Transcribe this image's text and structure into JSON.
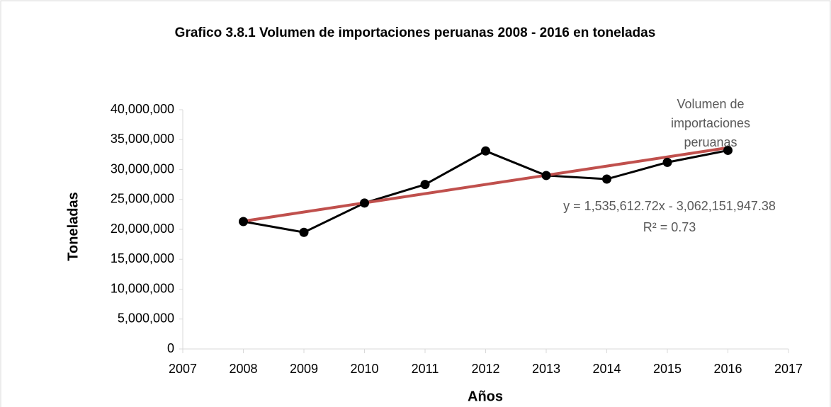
{
  "chart_data": {
    "type": "line",
    "title": "Grafico 3.8.1 Volumen de importaciones peruanas 2008 - 2016 en toneladas",
    "xlabel": "Años",
    "ylabel": "Toneladas",
    "x": [
      2008,
      2009,
      2010,
      2011,
      2012,
      2013,
      2014,
      2015,
      2016
    ],
    "series": [
      {
        "name": "Volumen de importaciones peruanas",
        "color": "#000000",
        "values": [
          21300000,
          19500000,
          24400000,
          27500000,
          33100000,
          29000000,
          28400000,
          31200000,
          33200000
        ]
      }
    ],
    "trendline": {
      "color": "#c0504d",
      "x": [
        2008,
        2016
      ],
      "values": [
        21358394,
        33643296
      ],
      "equation": "y = 1,535,612.72x - 3,062,151,947.38",
      "r2": "R² = 0.73"
    },
    "xlim": [
      2007,
      2017
    ],
    "xticks": [
      2007,
      2008,
      2009,
      2010,
      2011,
      2012,
      2013,
      2014,
      2015,
      2016,
      2017
    ],
    "ylim": [
      0,
      40000000
    ],
    "yticks": [
      0,
      {
        "value": 5000000,
        "label": "5,000,000"
      },
      {
        "value": 10000000,
        "label": "10,000,000"
      },
      {
        "value": 15000000,
        "label": "15,000,000"
      },
      {
        "value": 20000000,
        "label": "20,000,000"
      },
      {
        "value": 25000000,
        "label": "25,000,000"
      },
      {
        "value": 30000000,
        "label": "30,000,000"
      },
      {
        "value": 35000000,
        "label": "35,000,000"
      },
      {
        "value": 40000000,
        "label": "40,000,000"
      }
    ],
    "grid": false
  }
}
